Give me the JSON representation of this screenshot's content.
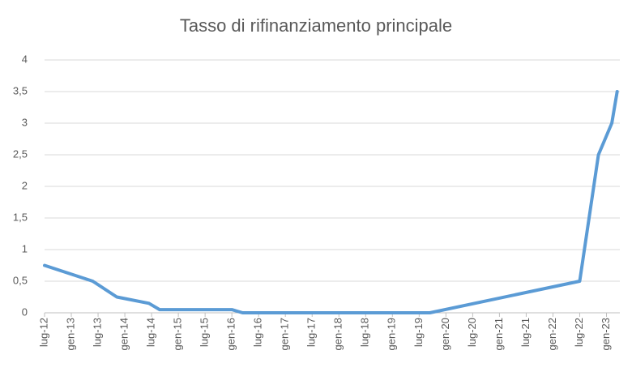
{
  "chart_data": {
    "type": "line",
    "title": "Tasso di rifinanziamento principale",
    "x": [
      2012.5,
      2013.4,
      2013.85,
      2014.45,
      2014.65,
      2016.0,
      2016.2,
      2019.7,
      2022.5,
      2022.85,
      2023.1,
      2023.2
    ],
    "series": [
      {
        "name": "Tasso di rifinanziamento principale",
        "color": "#5b9bd5",
        "values": [
          0.75,
          0.5,
          0.25,
          0.15,
          0.05,
          0.05,
          0,
          0,
          0.5,
          2.5,
          3,
          3.5
        ]
      }
    ],
    "xlim": [
      2012.5,
      2023.25
    ],
    "xticks": [
      {
        "value": 2012.5,
        "label": "lug-12"
      },
      {
        "value": 2013.0,
        "label": "gen-13"
      },
      {
        "value": 2013.5,
        "label": "lug-13"
      },
      {
        "value": 2014.0,
        "label": "gen-14"
      },
      {
        "value": 2014.5,
        "label": "lug-14"
      },
      {
        "value": 2015.0,
        "label": "gen-15"
      },
      {
        "value": 2015.5,
        "label": "lug-15"
      },
      {
        "value": 2016.0,
        "label": "gen-16"
      },
      {
        "value": 2016.5,
        "label": "lug-16"
      },
      {
        "value": 2017.0,
        "label": "gen-17"
      },
      {
        "value": 2017.5,
        "label": "lug-17"
      },
      {
        "value": 2018.0,
        "label": "gen-18"
      },
      {
        "value": 2018.5,
        "label": "lug-18"
      },
      {
        "value": 2019.0,
        "label": "gen-19"
      },
      {
        "value": 2019.5,
        "label": "lug-19"
      },
      {
        "value": 2020.0,
        "label": "gen-20"
      },
      {
        "value": 2020.5,
        "label": "lug-20"
      },
      {
        "value": 2021.0,
        "label": "gen-21"
      },
      {
        "value": 2021.5,
        "label": "lug-21"
      },
      {
        "value": 2022.0,
        "label": "gen-22"
      },
      {
        "value": 2022.5,
        "label": "lug-22"
      },
      {
        "value": 2023.0,
        "label": "gen-23"
      }
    ],
    "ylim": [
      0,
      4
    ],
    "yticks": [
      0,
      {
        "value": 0.5,
        "label": "0,5"
      },
      1,
      {
        "value": 1.5,
        "label": "1,5"
      },
      2,
      {
        "value": 2.5,
        "label": "2,5"
      },
      3,
      {
        "value": 3.5,
        "label": "3,5"
      },
      4
    ],
    "grid": true
  }
}
